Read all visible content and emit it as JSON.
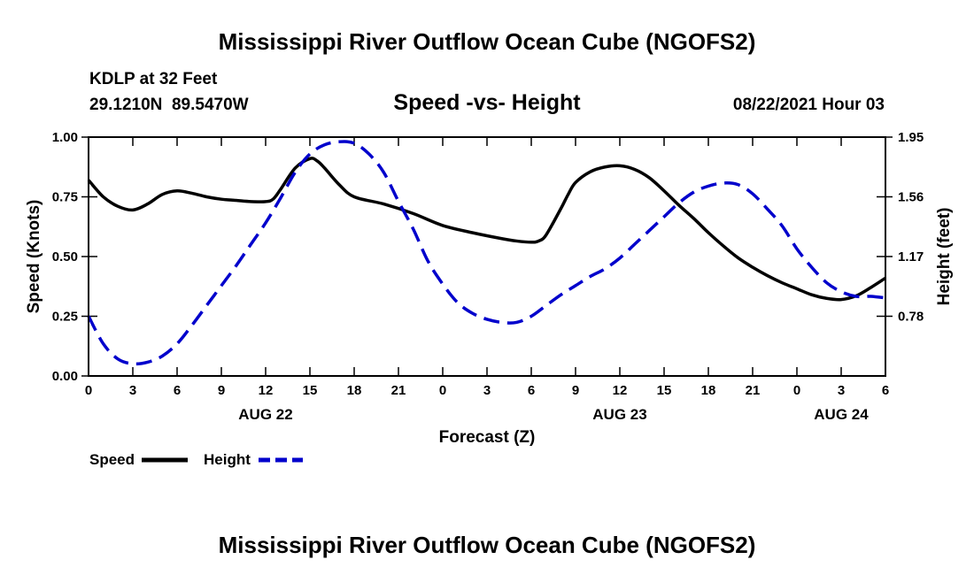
{
  "chart_data": {
    "type": "line",
    "title": "Mississippi River Outflow Ocean Cube (NGOFS2)",
    "footer_title": "Mississippi River Outflow Ocean Cube (NGOFS2)",
    "station": "KDLP at 32 Feet",
    "location": "29.1210N  89.5470W",
    "subtitle": "Speed -vs- Height",
    "datetime": "08/22/2021 Hour 03",
    "xlabel": "Forecast (Z)",
    "ylabel_left": "Speed (Knots)",
    "ylabel_right": "Height (feet)",
    "x_unit": "hours from 08/22 00Z",
    "xlim": [
      0,
      54
    ],
    "x_ticks": [
      0,
      3,
      6,
      9,
      12,
      15,
      18,
      21,
      24,
      27,
      30,
      33,
      36,
      39,
      42,
      45,
      48,
      51,
      54
    ],
    "x_tick_labels": [
      "0",
      "3",
      "6",
      "9",
      "12",
      "15",
      "18",
      "21",
      "0",
      "3",
      "6",
      "9",
      "12",
      "15",
      "18",
      "21",
      "0",
      "3",
      "6"
    ],
    "date_labels": [
      {
        "x": 12,
        "label": "AUG 22"
      },
      {
        "x": 36,
        "label": "AUG 23"
      },
      {
        "x": 51,
        "label": "AUG 24"
      }
    ],
    "ylim_left": [
      0,
      1.0
    ],
    "y_ticks_left": [
      0,
      0.25,
      0.5,
      0.75,
      1.0
    ],
    "y_tick_labels_left": [
      "0.00",
      "0.25",
      "0.50",
      "0.75",
      "1.00"
    ],
    "ylim_right": [
      0.39,
      1.95
    ],
    "y_ticks_right": [
      0.78,
      1.17,
      1.56,
      1.95
    ],
    "y_tick_labels_right": [
      "0.78",
      "1.17",
      "1.56",
      "1.95"
    ],
    "series": [
      {
        "name": "Speed",
        "axis": "left",
        "color": "#000000",
        "style": "solid",
        "x": [
          0,
          1,
          2,
          3,
          4,
          5,
          6,
          7,
          8,
          9,
          10,
          11,
          12,
          12.5,
          13,
          14,
          15,
          15.5,
          16,
          17,
          18,
          20,
          22,
          24,
          26,
          28,
          29,
          30,
          30.5,
          31,
          32,
          32.5,
          33,
          34,
          35,
          36,
          37,
          38,
          39,
          40,
          41,
          42,
          43,
          44,
          45,
          46,
          47,
          48,
          49,
          50,
          51,
          52,
          53,
          54
        ],
        "y": [
          0.82,
          0.75,
          0.71,
          0.695,
          0.72,
          0.76,
          0.775,
          0.765,
          0.75,
          0.74,
          0.735,
          0.73,
          0.73,
          0.74,
          0.78,
          0.87,
          0.91,
          0.9,
          0.87,
          0.8,
          0.75,
          0.72,
          0.68,
          0.63,
          0.6,
          0.575,
          0.565,
          0.56,
          0.565,
          0.59,
          0.7,
          0.76,
          0.81,
          0.855,
          0.875,
          0.88,
          0.865,
          0.83,
          0.775,
          0.715,
          0.66,
          0.6,
          0.545,
          0.495,
          0.455,
          0.42,
          0.39,
          0.365,
          0.34,
          0.325,
          0.32,
          0.335,
          0.37,
          0.41
        ]
      },
      {
        "name": "Height",
        "axis": "right",
        "color": "#0000cc",
        "style": "dashed",
        "x": [
          0,
          1,
          2,
          3,
          4,
          5,
          6,
          7,
          8,
          9,
          10,
          11,
          12,
          13,
          14,
          15,
          16,
          17,
          18,
          19,
          20,
          21,
          22,
          23,
          24,
          25,
          26,
          27,
          28,
          29,
          30,
          31,
          32,
          33,
          34,
          35,
          36,
          37,
          38,
          39,
          40,
          41,
          42,
          43,
          44,
          45,
          46,
          47,
          48,
          49,
          50,
          51,
          52,
          53,
          54
        ],
        "y": [
          0.78,
          0.6,
          0.5,
          0.47,
          0.48,
          0.52,
          0.6,
          0.72,
          0.85,
          0.98,
          1.11,
          1.25,
          1.39,
          1.55,
          1.72,
          1.84,
          1.9,
          1.92,
          1.91,
          1.84,
          1.72,
          1.53,
          1.35,
          1.14,
          0.99,
          0.87,
          0.8,
          0.76,
          0.74,
          0.74,
          0.78,
          0.85,
          0.92,
          0.98,
          1.04,
          1.09,
          1.16,
          1.25,
          1.34,
          1.43,
          1.52,
          1.59,
          1.63,
          1.65,
          1.64,
          1.58,
          1.48,
          1.37,
          1.22,
          1.1,
          1.0,
          0.94,
          0.91,
          0.91,
          0.9
        ]
      }
    ],
    "legend": [
      {
        "label": "Speed",
        "color": "#000000",
        "style": "solid"
      },
      {
        "label": "Height",
        "color": "#0000cc",
        "style": "dashed"
      }
    ],
    "legend_placement": "bottom-left"
  }
}
